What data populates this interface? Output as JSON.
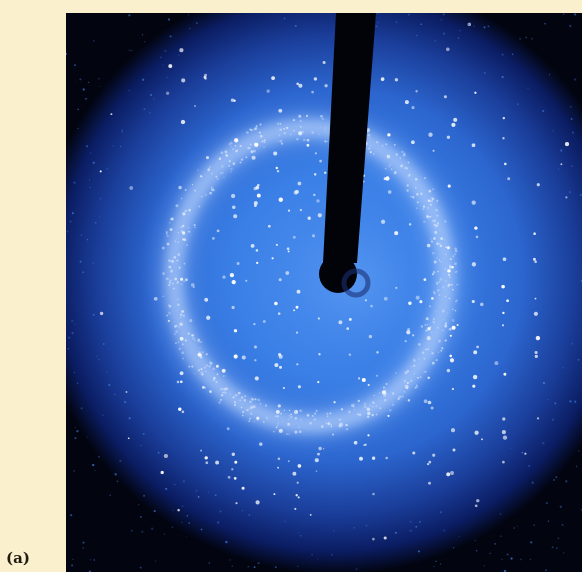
{
  "figure": {
    "panel_label": "(a)"
  },
  "colors": {
    "page_background": "#fbf0cd",
    "detector_background": "#02040f",
    "halo_core": "#3a7fe6",
    "halo_edge": "#0b1d63",
    "ring": "#b9d3ff",
    "beamstop": "#020308",
    "spot": "#ffffff"
  }
}
